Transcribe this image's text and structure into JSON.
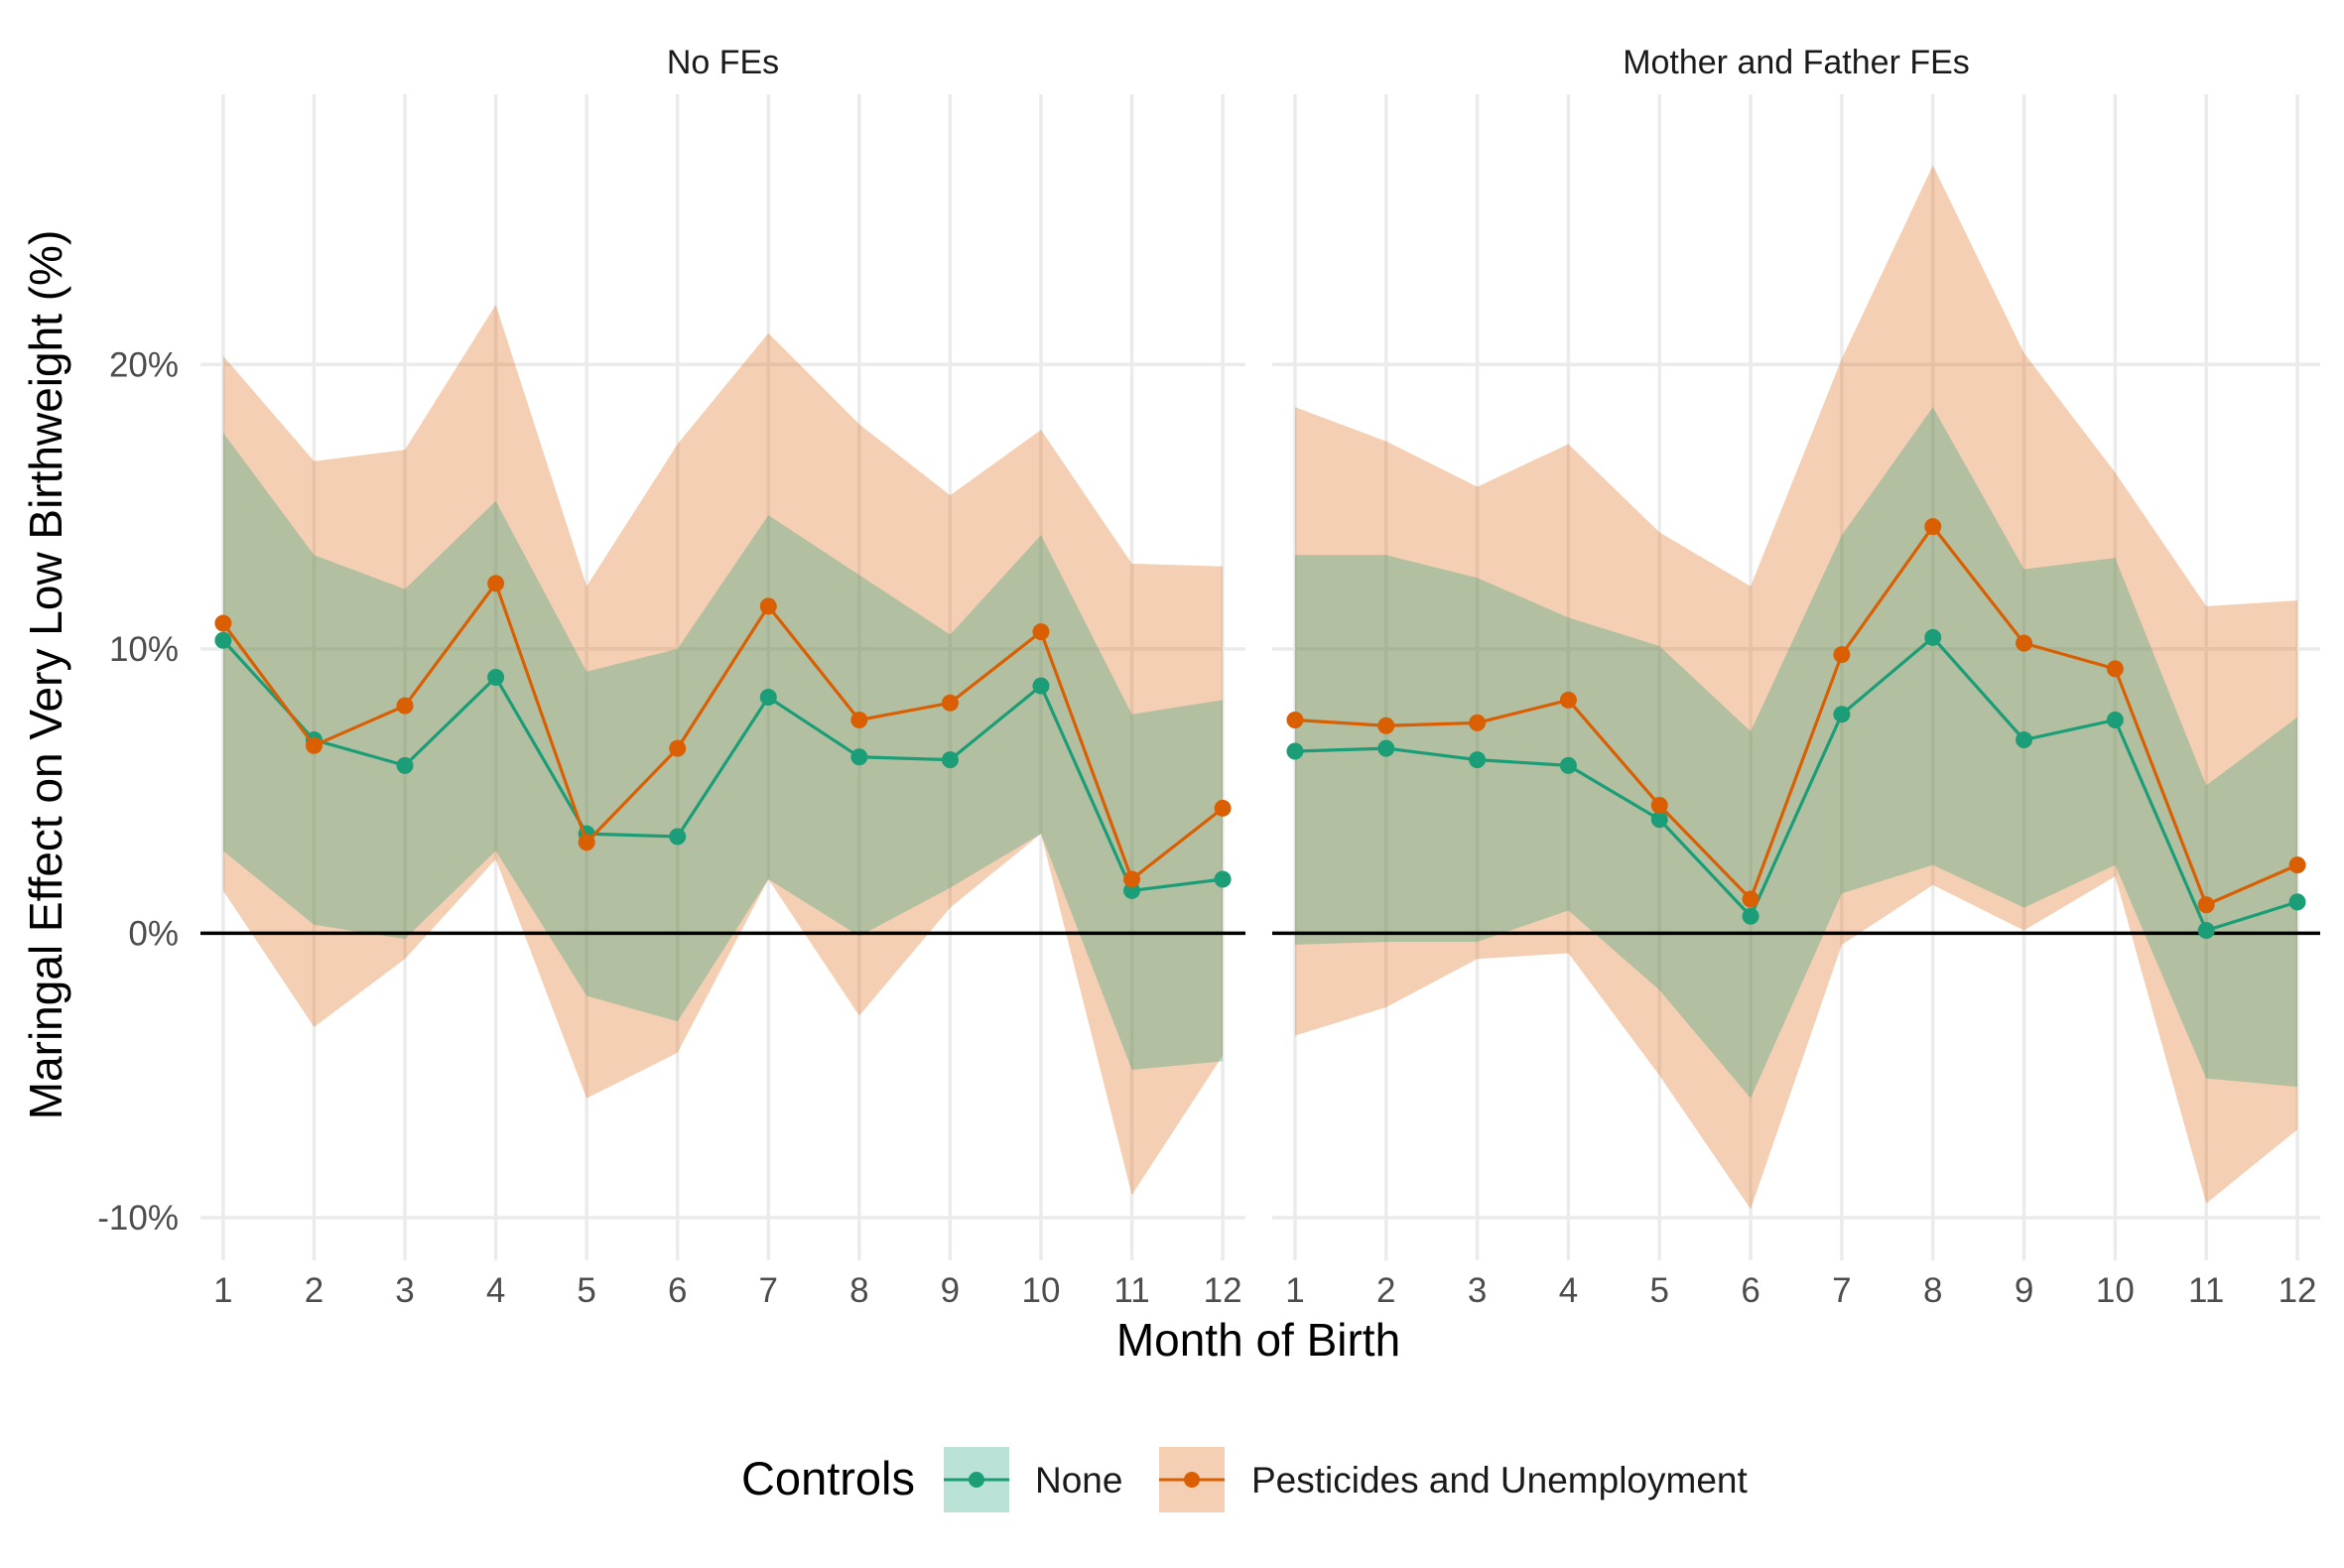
{
  "chart_data": {
    "type": "line",
    "xlabel": "Month of Birth",
    "ylabel": "Maringal Effect on Very Low Birthweight (%)",
    "x_ticks": [
      "1",
      "2",
      "3",
      "4",
      "5",
      "6",
      "7",
      "8",
      "9",
      "10",
      "11",
      "12"
    ],
    "y_ticks": [
      "-10%",
      "0%",
      "10%",
      "20%"
    ],
    "xlim": [
      0.75,
      12.25
    ],
    "ylim": [
      -11.5,
      29.5
    ],
    "grid": true,
    "reference_line_y": 0,
    "legend": {
      "title": "Controls",
      "position": "bottom",
      "entries": [
        "None",
        "Pesticides and Unemployment"
      ]
    },
    "colors": {
      "None": "#1b9e77",
      "Pesticides and Unemployment": "#d95f02",
      "None_ribbon": "#1b9e77",
      "Pesticides_ribbon": "#d95f02"
    },
    "panels": [
      {
        "title": "No FEs",
        "series": [
          {
            "name": "None",
            "x": [
              1,
              2,
              3,
              4,
              5,
              6,
              7,
              8,
              9,
              10,
              11,
              12
            ],
            "y": [
              10.3,
              6.8,
              5.9,
              9.0,
              3.5,
              3.4,
              8.3,
              6.2,
              6.1,
              8.7,
              1.5,
              1.9
            ],
            "lower": [
              2.9,
              0.3,
              -0.2,
              2.9,
              -2.2,
              -3.1,
              1.9,
              -0.1,
              1.6,
              3.5,
              -4.8,
              -4.5
            ],
            "upper": [
              17.6,
              13.3,
              12.1,
              15.2,
              9.2,
              10.0,
              14.7,
              12.6,
              10.5,
              14.0,
              7.7,
              8.2
            ]
          },
          {
            "name": "Pesticides and Unemployment",
            "x": [
              1,
              2,
              3,
              4,
              5,
              6,
              7,
              8,
              9,
              10,
              11,
              12
            ],
            "y": [
              10.9,
              6.6,
              8.0,
              12.3,
              3.2,
              6.5,
              11.5,
              7.5,
              8.1,
              10.6,
              1.9,
              4.4
            ],
            "lower": [
              1.5,
              -3.3,
              -0.9,
              2.6,
              -5.8,
              -4.2,
              1.9,
              -2.9,
              0.9,
              3.5,
              -9.2,
              -4.3
            ],
            "upper": [
              20.3,
              16.6,
              17.0,
              22.1,
              12.2,
              17.2,
              21.1,
              17.9,
              15.4,
              17.7,
              13.0,
              12.9
            ]
          }
        ]
      },
      {
        "title": "Mother and Father FEs",
        "series": [
          {
            "name": "None",
            "x": [
              1,
              2,
              3,
              4,
              5,
              6,
              7,
              8,
              9,
              10,
              11,
              12
            ],
            "y": [
              6.4,
              6.5,
              6.1,
              5.9,
              4.0,
              0.6,
              7.7,
              10.4,
              6.8,
              7.5,
              0.1,
              1.1
            ],
            "lower": [
              -0.4,
              -0.3,
              -0.3,
              0.8,
              -2.0,
              -5.8,
              1.4,
              2.4,
              0.9,
              2.4,
              -5.1,
              -5.4
            ],
            "upper": [
              13.3,
              13.3,
              12.5,
              11.1,
              10.1,
              7.1,
              14.0,
              18.5,
              12.8,
              13.2,
              5.2,
              7.6
            ]
          },
          {
            "name": "Pesticides and Unemployment",
            "x": [
              1,
              2,
              3,
              4,
              5,
              6,
              7,
              8,
              9,
              10,
              11,
              12
            ],
            "y": [
              7.5,
              7.3,
              7.4,
              8.2,
              4.5,
              1.2,
              9.8,
              14.3,
              10.2,
              9.3,
              1.0,
              2.4
            ],
            "lower": [
              -3.6,
              -2.6,
              -0.9,
              -0.7,
              -5.0,
              -9.7,
              -0.4,
              1.7,
              0.1,
              2.0,
              -9.5,
              -6.9
            ],
            "upper": [
              18.5,
              17.3,
              15.7,
              17.2,
              14.1,
              12.2,
              20.2,
              27.0,
              20.4,
              16.2,
              11.5,
              11.7
            ]
          }
        ]
      }
    ]
  }
}
